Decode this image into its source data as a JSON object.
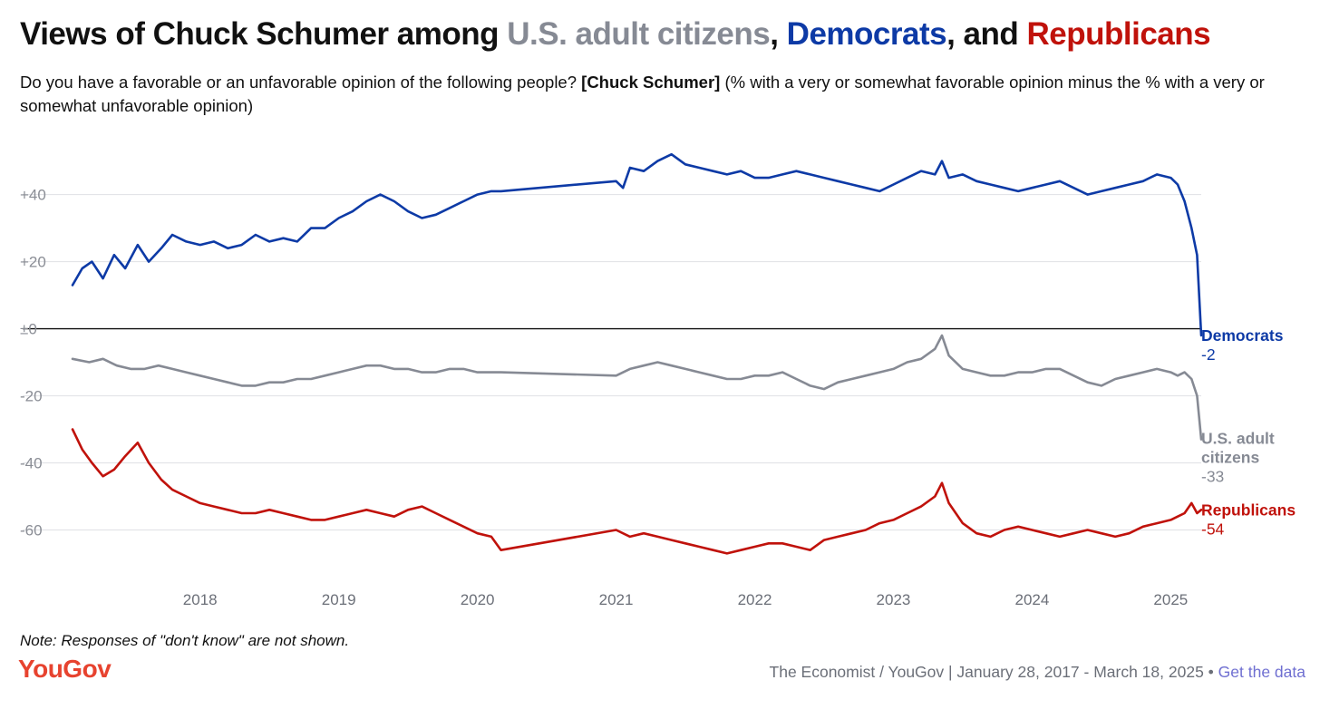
{
  "title": {
    "prefix": "Views of Chuck Schumer among ",
    "us": "U.S. adult citizens",
    "sep1": ", ",
    "dem": "Democrats",
    "sep2": ", and ",
    "rep": "Republicans"
  },
  "subtitle": {
    "part1": "Do you have a favorable or an unfavorable opinion of the following people? ",
    "bold": "[Chuck Schumer]",
    "part2": " (% with a very or somewhat favorable opinion minus the % with a very or somewhat unfavorable opinion)"
  },
  "note": "Note: Responses of \"don't know\" are not shown.",
  "logo": "YouGov",
  "source": {
    "text": "The Economist / YouGov | January 28, 2017 - March 18, 2025 • ",
    "link": "Get the data"
  },
  "chart_data": {
    "type": "line",
    "x_axis": {
      "ticks": [
        2018,
        2019,
        2020,
        2021,
        2022,
        2023,
        2024,
        2025
      ],
      "tick_labels": [
        "2018",
        "2019",
        "2020",
        "2021",
        "2022",
        "2023",
        "2024",
        "2025"
      ],
      "range": [
        2017.08,
        2025.22
      ]
    },
    "y_axis": {
      "ticks": [
        40,
        20,
        0,
        -20,
        -40,
        -60
      ],
      "tick_labels": [
        "+40",
        "+20",
        "±0",
        "-20",
        "-40",
        "-60"
      ],
      "range": [
        -75,
        58
      ]
    },
    "grid": true,
    "series": [
      {
        "name": "Democrats",
        "color": "#0d3aa6",
        "end_label": "Democrats",
        "end_value_label": "-2",
        "points": [
          [
            2017.08,
            13
          ],
          [
            2017.15,
            18
          ],
          [
            2017.22,
            20
          ],
          [
            2017.3,
            15
          ],
          [
            2017.38,
            22
          ],
          [
            2017.46,
            18
          ],
          [
            2017.55,
            25
          ],
          [
            2017.63,
            20
          ],
          [
            2017.72,
            24
          ],
          [
            2017.8,
            28
          ],
          [
            2017.9,
            26
          ],
          [
            2018.0,
            25
          ],
          [
            2018.1,
            26
          ],
          [
            2018.2,
            24
          ],
          [
            2018.3,
            25
          ],
          [
            2018.4,
            28
          ],
          [
            2018.5,
            26
          ],
          [
            2018.6,
            27
          ],
          [
            2018.7,
            26
          ],
          [
            2018.8,
            30
          ],
          [
            2018.9,
            30
          ],
          [
            2019.0,
            33
          ],
          [
            2019.1,
            35
          ],
          [
            2019.2,
            38
          ],
          [
            2019.3,
            40
          ],
          [
            2019.4,
            38
          ],
          [
            2019.5,
            35
          ],
          [
            2019.6,
            33
          ],
          [
            2019.7,
            34
          ],
          [
            2019.8,
            36
          ],
          [
            2019.9,
            38
          ],
          [
            2020.0,
            40
          ],
          [
            2020.1,
            41
          ],
          [
            2020.17,
            41
          ],
          [
            2021.0,
            44
          ],
          [
            2021.05,
            42
          ],
          [
            2021.1,
            48
          ],
          [
            2021.2,
            47
          ],
          [
            2021.3,
            50
          ],
          [
            2021.4,
            52
          ],
          [
            2021.5,
            49
          ],
          [
            2021.6,
            48
          ],
          [
            2021.7,
            47
          ],
          [
            2021.8,
            46
          ],
          [
            2021.9,
            47
          ],
          [
            2022.0,
            45
          ],
          [
            2022.1,
            45
          ],
          [
            2022.2,
            46
          ],
          [
            2022.3,
            47
          ],
          [
            2022.4,
            46
          ],
          [
            2022.5,
            45
          ],
          [
            2022.6,
            44
          ],
          [
            2022.7,
            43
          ],
          [
            2022.8,
            42
          ],
          [
            2022.9,
            41
          ],
          [
            2023.0,
            43
          ],
          [
            2023.1,
            45
          ],
          [
            2023.2,
            47
          ],
          [
            2023.3,
            46
          ],
          [
            2023.35,
            50
          ],
          [
            2023.4,
            45
          ],
          [
            2023.5,
            46
          ],
          [
            2023.6,
            44
          ],
          [
            2023.7,
            43
          ],
          [
            2023.8,
            42
          ],
          [
            2023.9,
            41
          ],
          [
            2024.0,
            42
          ],
          [
            2024.1,
            43
          ],
          [
            2024.2,
            44
          ],
          [
            2024.3,
            42
          ],
          [
            2024.4,
            40
          ],
          [
            2024.5,
            41
          ],
          [
            2024.6,
            42
          ],
          [
            2024.7,
            43
          ],
          [
            2024.8,
            44
          ],
          [
            2024.9,
            46
          ],
          [
            2025.0,
            45
          ],
          [
            2025.05,
            43
          ],
          [
            2025.1,
            38
          ],
          [
            2025.15,
            30
          ],
          [
            2025.19,
            22
          ],
          [
            2025.22,
            -2
          ]
        ]
      },
      {
        "name": "U.S. adult citizens",
        "color": "#868a94",
        "end_label": "U.S. adult citizens",
        "end_value_label": "-33",
        "points": [
          [
            2017.08,
            -9
          ],
          [
            2017.2,
            -10
          ],
          [
            2017.3,
            -9
          ],
          [
            2017.4,
            -11
          ],
          [
            2017.5,
            -12
          ],
          [
            2017.6,
            -12
          ],
          [
            2017.7,
            -11
          ],
          [
            2017.8,
            -12
          ],
          [
            2017.9,
            -13
          ],
          [
            2018.0,
            -14
          ],
          [
            2018.1,
            -15
          ],
          [
            2018.2,
            -16
          ],
          [
            2018.3,
            -17
          ],
          [
            2018.4,
            -17
          ],
          [
            2018.5,
            -16
          ],
          [
            2018.6,
            -16
          ],
          [
            2018.7,
            -15
          ],
          [
            2018.8,
            -15
          ],
          [
            2018.9,
            -14
          ],
          [
            2019.0,
            -13
          ],
          [
            2019.1,
            -12
          ],
          [
            2019.2,
            -11
          ],
          [
            2019.3,
            -11
          ],
          [
            2019.4,
            -12
          ],
          [
            2019.5,
            -12
          ],
          [
            2019.6,
            -13
          ],
          [
            2019.7,
            -13
          ],
          [
            2019.8,
            -12
          ],
          [
            2019.9,
            -12
          ],
          [
            2020.0,
            -13
          ],
          [
            2020.17,
            -13
          ],
          [
            2021.0,
            -14
          ],
          [
            2021.1,
            -12
          ],
          [
            2021.2,
            -11
          ],
          [
            2021.3,
            -10
          ],
          [
            2021.4,
            -11
          ],
          [
            2021.5,
            -12
          ],
          [
            2021.6,
            -13
          ],
          [
            2021.7,
            -14
          ],
          [
            2021.8,
            -15
          ],
          [
            2021.9,
            -15
          ],
          [
            2022.0,
            -14
          ],
          [
            2022.1,
            -14
          ],
          [
            2022.2,
            -13
          ],
          [
            2022.3,
            -15
          ],
          [
            2022.4,
            -17
          ],
          [
            2022.5,
            -18
          ],
          [
            2022.6,
            -16
          ],
          [
            2022.7,
            -15
          ],
          [
            2022.8,
            -14
          ],
          [
            2022.9,
            -13
          ],
          [
            2023.0,
            -12
          ],
          [
            2023.1,
            -10
          ],
          [
            2023.2,
            -9
          ],
          [
            2023.3,
            -6
          ],
          [
            2023.35,
            -2
          ],
          [
            2023.4,
            -8
          ],
          [
            2023.5,
            -12
          ],
          [
            2023.6,
            -13
          ],
          [
            2023.7,
            -14
          ],
          [
            2023.8,
            -14
          ],
          [
            2023.9,
            -13
          ],
          [
            2024.0,
            -13
          ],
          [
            2024.1,
            -12
          ],
          [
            2024.2,
            -12
          ],
          [
            2024.3,
            -14
          ],
          [
            2024.4,
            -16
          ],
          [
            2024.5,
            -17
          ],
          [
            2024.6,
            -15
          ],
          [
            2024.7,
            -14
          ],
          [
            2024.8,
            -13
          ],
          [
            2024.9,
            -12
          ],
          [
            2025.0,
            -13
          ],
          [
            2025.05,
            -14
          ],
          [
            2025.1,
            -13
          ],
          [
            2025.15,
            -15
          ],
          [
            2025.19,
            -20
          ],
          [
            2025.22,
            -33
          ]
        ]
      },
      {
        "name": "Republicans",
        "color": "#c0120b",
        "end_label": "Republicans",
        "end_value_label": "-54",
        "points": [
          [
            2017.08,
            -30
          ],
          [
            2017.15,
            -36
          ],
          [
            2017.22,
            -40
          ],
          [
            2017.3,
            -44
          ],
          [
            2017.38,
            -42
          ],
          [
            2017.46,
            -38
          ],
          [
            2017.55,
            -34
          ],
          [
            2017.63,
            -40
          ],
          [
            2017.72,
            -45
          ],
          [
            2017.8,
            -48
          ],
          [
            2017.9,
            -50
          ],
          [
            2018.0,
            -52
          ],
          [
            2018.1,
            -53
          ],
          [
            2018.2,
            -54
          ],
          [
            2018.3,
            -55
          ],
          [
            2018.4,
            -55
          ],
          [
            2018.5,
            -54
          ],
          [
            2018.6,
            -55
          ],
          [
            2018.7,
            -56
          ],
          [
            2018.8,
            -57
          ],
          [
            2018.9,
            -57
          ],
          [
            2019.0,
            -56
          ],
          [
            2019.1,
            -55
          ],
          [
            2019.2,
            -54
          ],
          [
            2019.3,
            -55
          ],
          [
            2019.4,
            -56
          ],
          [
            2019.5,
            -54
          ],
          [
            2019.6,
            -53
          ],
          [
            2019.7,
            -55
          ],
          [
            2019.8,
            -57
          ],
          [
            2019.9,
            -59
          ],
          [
            2020.0,
            -61
          ],
          [
            2020.1,
            -62
          ],
          [
            2020.17,
            -66
          ],
          [
            2021.0,
            -60
          ],
          [
            2021.1,
            -62
          ],
          [
            2021.2,
            -61
          ],
          [
            2021.3,
            -62
          ],
          [
            2021.4,
            -63
          ],
          [
            2021.5,
            -64
          ],
          [
            2021.6,
            -65
          ],
          [
            2021.7,
            -66
          ],
          [
            2021.8,
            -67
          ],
          [
            2021.9,
            -66
          ],
          [
            2022.0,
            -65
          ],
          [
            2022.1,
            -64
          ],
          [
            2022.2,
            -64
          ],
          [
            2022.3,
            -65
          ],
          [
            2022.4,
            -66
          ],
          [
            2022.5,
            -63
          ],
          [
            2022.6,
            -62
          ],
          [
            2022.7,
            -61
          ],
          [
            2022.8,
            -60
          ],
          [
            2022.9,
            -58
          ],
          [
            2023.0,
            -57
          ],
          [
            2023.1,
            -55
          ],
          [
            2023.2,
            -53
          ],
          [
            2023.3,
            -50
          ],
          [
            2023.35,
            -46
          ],
          [
            2023.4,
            -52
          ],
          [
            2023.5,
            -58
          ],
          [
            2023.6,
            -61
          ],
          [
            2023.7,
            -62
          ],
          [
            2023.8,
            -60
          ],
          [
            2023.9,
            -59
          ],
          [
            2024.0,
            -60
          ],
          [
            2024.1,
            -61
          ],
          [
            2024.2,
            -62
          ],
          [
            2024.3,
            -61
          ],
          [
            2024.4,
            -60
          ],
          [
            2024.5,
            -61
          ],
          [
            2024.6,
            -62
          ],
          [
            2024.7,
            -61
          ],
          [
            2024.8,
            -59
          ],
          [
            2024.9,
            -58
          ],
          [
            2025.0,
            -57
          ],
          [
            2025.05,
            -56
          ],
          [
            2025.1,
            -55
          ],
          [
            2025.15,
            -52
          ],
          [
            2025.19,
            -55
          ],
          [
            2025.22,
            -54
          ]
        ]
      }
    ]
  }
}
